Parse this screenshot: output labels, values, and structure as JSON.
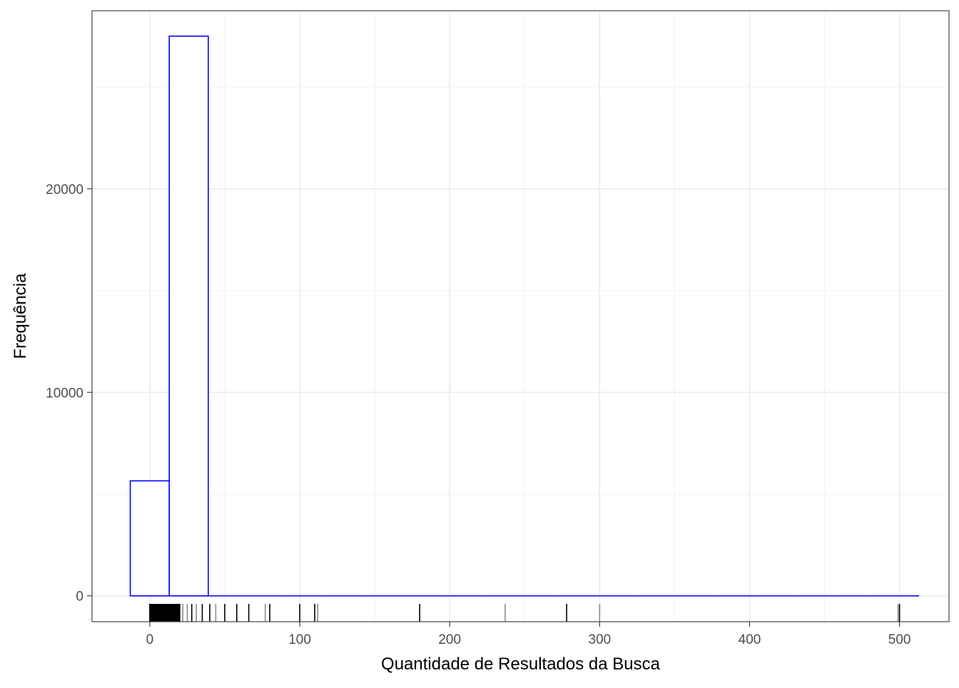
{
  "chart_data": {
    "type": "bar",
    "title": "",
    "xlabel": "Quantidade de Resultados da Busca",
    "ylabel": "Frequência",
    "xlim": [
      -38.5,
      533
    ],
    "ylim": [
      -1270,
      28750
    ],
    "x_ticks": [
      0,
      100,
      200,
      300,
      400,
      500
    ],
    "x_tick_labels": [
      "0",
      "100",
      "200",
      "300",
      "400",
      "500"
    ],
    "y_ticks": [
      0,
      10000,
      20000
    ],
    "y_tick_labels": [
      "0",
      "10000",
      "20000"
    ],
    "y_minor_ticks": [
      5000,
      15000,
      25000
    ],
    "grid": true,
    "bar_outline_color": "#0000ff",
    "bar_fill_color": "#ffffff",
    "bins": [
      {
        "x0": -13,
        "x1": 13,
        "count": 5650
      },
      {
        "x0": 13,
        "x1": 39,
        "count": 27500
      },
      {
        "x0": 39,
        "x1": 65,
        "count": 0
      },
      {
        "x0": 65,
        "x1": 91,
        "count": 0
      },
      {
        "x0": 91,
        "x1": 117,
        "count": 0
      },
      {
        "x0": 117,
        "x1": 143,
        "count": 0
      },
      {
        "x0": 143,
        "x1": 169,
        "count": 0
      },
      {
        "x0": 169,
        "x1": 195,
        "count": 0
      },
      {
        "x0": 195,
        "x1": 221,
        "count": 0
      },
      {
        "x0": 221,
        "x1": 247,
        "count": 0
      },
      {
        "x0": 247,
        "x1": 273,
        "count": 0
      },
      {
        "x0": 273,
        "x1": 299,
        "count": 0
      },
      {
        "x0": 299,
        "x1": 325,
        "count": 0
      },
      {
        "x0": 325,
        "x1": 351,
        "count": 0
      },
      {
        "x0": 351,
        "x1": 377,
        "count": 0
      },
      {
        "x0": 377,
        "x1": 403,
        "count": 0
      },
      {
        "x0": 403,
        "x1": 429,
        "count": 0
      },
      {
        "x0": 429,
        "x1": 455,
        "count": 0
      },
      {
        "x0": 455,
        "x1": 481,
        "count": 0
      },
      {
        "x0": 481,
        "x1": 507,
        "count": 0
      },
      {
        "x0": 507,
        "x1": 513,
        "count": 0
      }
    ],
    "rug": {
      "dense_range": [
        0,
        20
      ],
      "points": [
        0,
        1,
        2,
        3,
        4,
        5,
        6,
        7,
        8,
        9,
        10,
        11,
        12,
        13,
        14,
        15,
        16,
        17,
        18,
        19,
        20,
        22,
        25,
        28,
        31,
        35,
        40,
        44,
        50,
        58,
        66,
        77,
        80,
        100,
        110,
        112,
        180,
        237,
        278,
        300,
        499,
        500
      ],
      "light_points": [
        22,
        25,
        31,
        44,
        77,
        112,
        237,
        300,
        499
      ]
    }
  }
}
